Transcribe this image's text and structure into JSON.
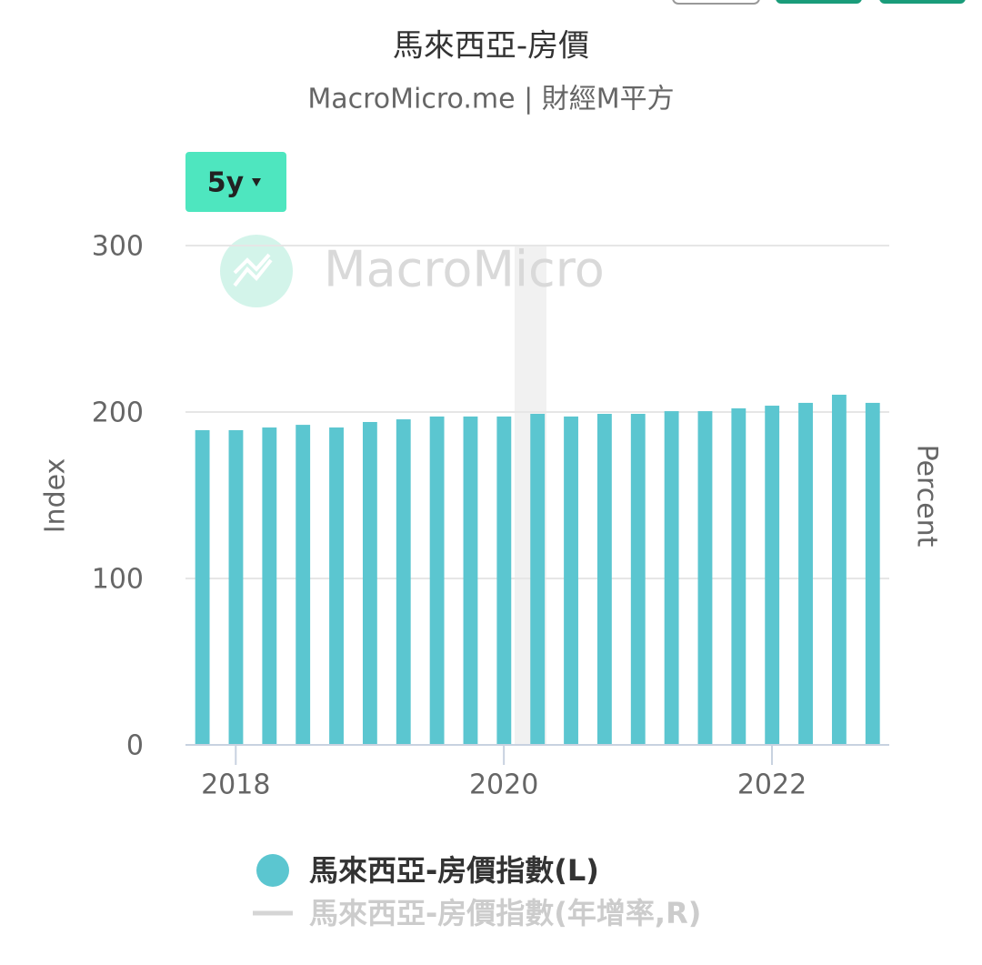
{
  "chart_data": {
    "type": "bar",
    "title": "馬來西亞-房價",
    "subtitle": "MacroMicro.me | 財經M平方",
    "range_button": "5y",
    "watermark": "MacroMicro",
    "y_label": "Index",
    "y2_label": "Percent",
    "categories": [
      null,
      "2018",
      null,
      null,
      null,
      null,
      null,
      null,
      null,
      "2020",
      null,
      null,
      null,
      null,
      null,
      null,
      null,
      "2022",
      null,
      null,
      null
    ],
    "series": [
      {
        "name": "馬來西亞-房價指數(L)",
        "color": "#5bc6d0",
        "values": [
          189.1,
          189.1,
          190.7,
          192.3,
          190.7,
          194.0,
          195.6,
          197.3,
          197.3,
          197.3,
          198.9,
          197.3,
          198.9,
          198.9,
          200.5,
          200.5,
          202.2,
          203.8,
          205.5,
          210.4,
          205.5
        ]
      }
    ],
    "hidden_series": [
      {
        "name": "馬來西亞-房價指數(年增率,R)",
        "color": "#d5d5d5"
      }
    ],
    "ylim": [
      0,
      300
    ],
    "yticks": [
      0,
      100,
      200,
      300
    ],
    "grid": true
  }
}
